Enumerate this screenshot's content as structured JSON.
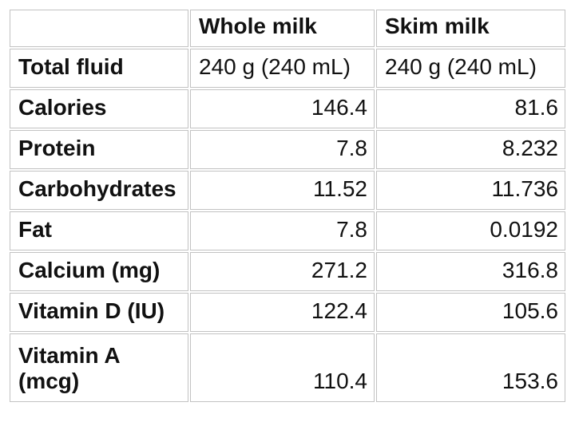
{
  "table": {
    "columns": [
      "",
      "Whole milk",
      "Skim milk"
    ],
    "rows": [
      {
        "label": "Total fluid",
        "values": [
          "240 g (240 mL)",
          "240 g (240 mL)"
        ]
      },
      {
        "label": "Calories",
        "values": [
          "146.4",
          "81.6"
        ]
      },
      {
        "label": "Protein",
        "values": [
          "7.8",
          "8.232"
        ]
      },
      {
        "label": "Carbohydrates",
        "values": [
          "11.52",
          "11.736"
        ]
      },
      {
        "label": "Fat",
        "values": [
          "7.8",
          "0.0192"
        ]
      },
      {
        "label": "Calcium (mg)",
        "values": [
          "271.2",
          "316.8"
        ]
      },
      {
        "label": "Vitamin D (IU)",
        "values": [
          "122.4",
          "105.6"
        ]
      },
      {
        "label": "Vitamin A (mcg)",
        "values": [
          "110.4",
          "153.6"
        ]
      }
    ]
  },
  "chart_data": {
    "type": "table",
    "title": "",
    "columns": [
      "",
      "Whole milk",
      "Skim milk"
    ],
    "rows": [
      [
        "Total fluid",
        "240 g (240 mL)",
        "240 g (240 mL)"
      ],
      [
        "Calories",
        146.4,
        81.6
      ],
      [
        "Protein",
        7.8,
        8.232
      ],
      [
        "Carbohydrates",
        11.52,
        11.736
      ],
      [
        "Fat",
        7.8,
        0.0192
      ],
      [
        "Calcium (mg)",
        271.2,
        316.8
      ],
      [
        "Vitamin D (IU)",
        122.4,
        105.6
      ],
      [
        "Vitamin A (mcg)",
        110.4,
        153.6
      ]
    ],
    "series": [
      {
        "name": "Whole milk",
        "values": [
          146.4,
          7.8,
          11.52,
          7.8,
          271.2,
          122.4,
          110.4
        ]
      },
      {
        "name": "Skim milk",
        "values": [
          81.6,
          8.232,
          11.736,
          0.0192,
          316.8,
          105.6,
          153.6
        ]
      }
    ],
    "categories": [
      "Calories",
      "Protein",
      "Carbohydrates",
      "Fat",
      "Calcium (mg)",
      "Vitamin D (IU)",
      "Vitamin A (mcg)"
    ]
  },
  "colors": {
    "border": "#c2c2c2",
    "text": "#111111",
    "background": "#ffffff"
  }
}
